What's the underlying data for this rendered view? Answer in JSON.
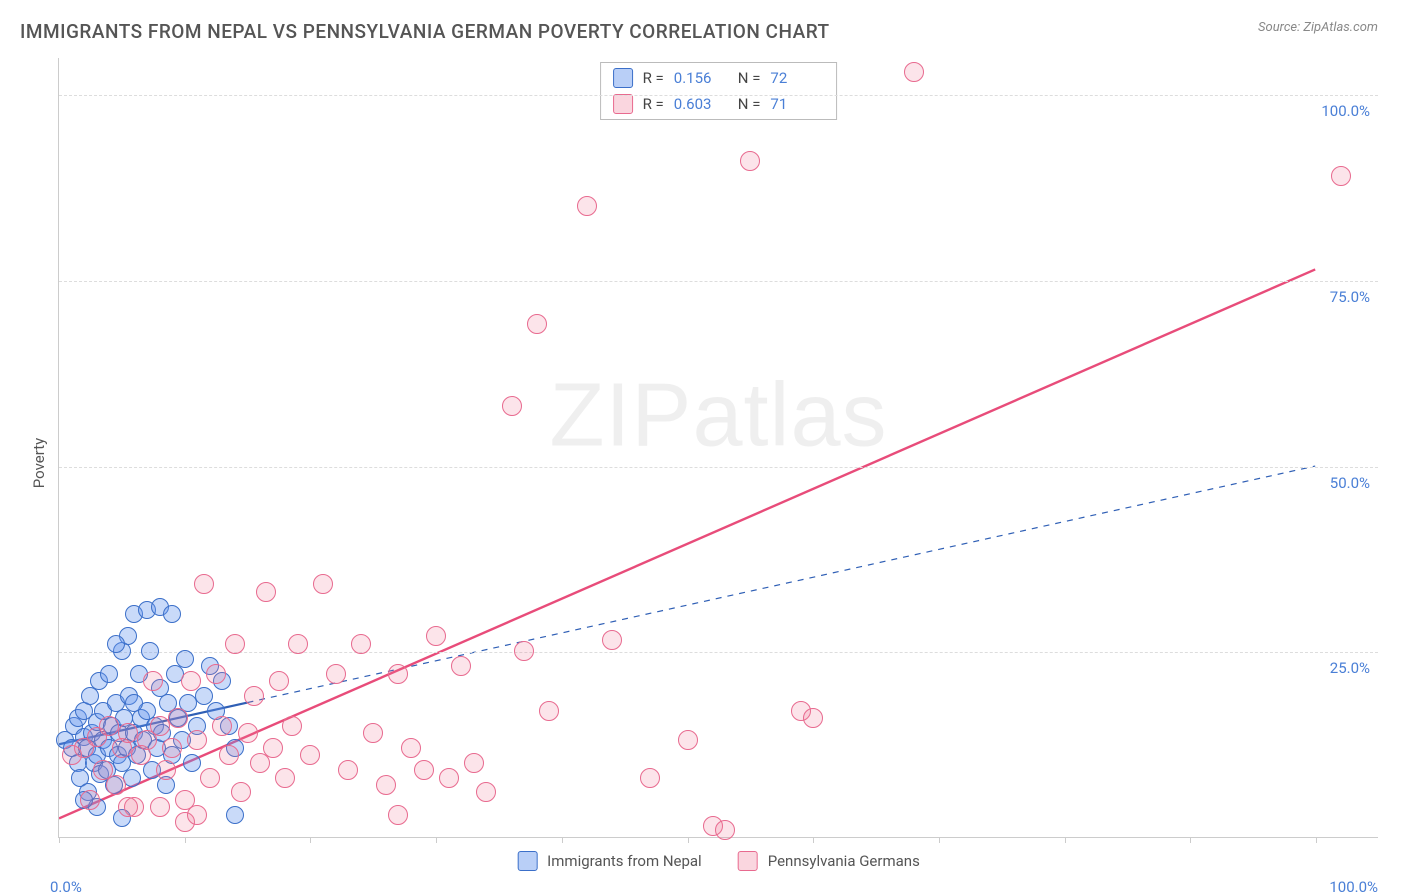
{
  "title": "IMMIGRANTS FROM NEPAL VS PENNSYLVANIA GERMAN POVERTY CORRELATION CHART",
  "source": "Source: ZipAtlas.com",
  "ylabel": "Poverty",
  "watermark_a": "ZIP",
  "watermark_b": "atlas",
  "chart": {
    "type": "scatter",
    "background_color": "#ffffff",
    "grid_color": "#dddddd",
    "axis_color": "#cccccc",
    "tick_label_color": "#4a7fd6",
    "xlim": [
      0,
      105
    ],
    "ylim": [
      0,
      105
    ],
    "yticks": [
      {
        "v": 25,
        "l": "25.0%"
      },
      {
        "v": 50,
        "l": "50.0%"
      },
      {
        "v": 75,
        "l": "75.0%"
      },
      {
        "v": 100,
        "l": "100.0%"
      }
    ],
    "xticks": [
      {
        "v": 0,
        "l": "0.0%"
      },
      {
        "v": 100,
        "l": "100.0%"
      }
    ],
    "xtick_marks": [
      0,
      10,
      20,
      30,
      40,
      50,
      60,
      70,
      80,
      90,
      100
    ],
    "series": [
      {
        "name": "Immigrants from Nepal",
        "key": "blue",
        "marker_size": 18,
        "fill": "rgba(100,149,237,0.35)",
        "stroke": "#3b6fc9",
        "R": "0.156",
        "N": "72",
        "trend": {
          "x1": 0,
          "y1": 12.5,
          "x2": 100,
          "y2": 50,
          "solid_until_x": 15,
          "line_width_solid": 2.2,
          "line_width_dash": 1.2,
          "color": "#2f5fb5",
          "dash": "6,6"
        },
        "points": [
          [
            0.5,
            13
          ],
          [
            1,
            12
          ],
          [
            1.2,
            15
          ],
          [
            1.5,
            10
          ],
          [
            1.5,
            16
          ],
          [
            1.7,
            8
          ],
          [
            2,
            13.5
          ],
          [
            2,
            17
          ],
          [
            2.2,
            12
          ],
          [
            2.3,
            6
          ],
          [
            2.5,
            19
          ],
          [
            2.6,
            14
          ],
          [
            2.8,
            10
          ],
          [
            3,
            11
          ],
          [
            3,
            15.5
          ],
          [
            3.2,
            21
          ],
          [
            3.3,
            8.5
          ],
          [
            3.5,
            13
          ],
          [
            3.5,
            17
          ],
          [
            3.8,
            9
          ],
          [
            4,
            12
          ],
          [
            4,
            22
          ],
          [
            4.2,
            15
          ],
          [
            4.4,
            7
          ],
          [
            4.5,
            18
          ],
          [
            4.7,
            11
          ],
          [
            4.8,
            14
          ],
          [
            5,
            25
          ],
          [
            5,
            10
          ],
          [
            5.2,
            16
          ],
          [
            5.4,
            12
          ],
          [
            5.5,
            27
          ],
          [
            5.6,
            19
          ],
          [
            5.8,
            8
          ],
          [
            6,
            14
          ],
          [
            6,
            30
          ],
          [
            6.2,
            11
          ],
          [
            6.4,
            22
          ],
          [
            6.5,
            16
          ],
          [
            6.7,
            13
          ],
          [
            7,
            30.5
          ],
          [
            7,
            17
          ],
          [
            7.2,
            25
          ],
          [
            7.4,
            9
          ],
          [
            7.6,
            15
          ],
          [
            7.8,
            12
          ],
          [
            8,
            31
          ],
          [
            8,
            20
          ],
          [
            8.2,
            14
          ],
          [
            8.5,
            7
          ],
          [
            8.7,
            18
          ],
          [
            9,
            30
          ],
          [
            9,
            11
          ],
          [
            9.2,
            22
          ],
          [
            9.5,
            16
          ],
          [
            9.8,
            13
          ],
          [
            10,
            24
          ],
          [
            10.3,
            18
          ],
          [
            10.6,
            10
          ],
          [
            11,
            15
          ],
          [
            11.5,
            19
          ],
          [
            12,
            23
          ],
          [
            12.5,
            17
          ],
          [
            13,
            21
          ],
          [
            13.5,
            15
          ],
          [
            14,
            12
          ],
          [
            14,
            3
          ],
          [
            3,
            4
          ],
          [
            5,
            2.5
          ],
          [
            2,
            5
          ],
          [
            4.5,
            26
          ],
          [
            6,
            18
          ]
        ]
      },
      {
        "name": "Pennsylvania Germans",
        "key": "pink",
        "marker_size": 20,
        "fill": "rgba(240,120,150,0.20)",
        "stroke": "#e86a8f",
        "R": "0.603",
        "N": "71",
        "trend": {
          "x1": 0,
          "y1": 2.5,
          "x2": 100,
          "y2": 76.5,
          "solid_until_x": 100,
          "line_width_solid": 2.4,
          "color": "#e84c7a"
        },
        "points": [
          [
            1,
            11
          ],
          [
            2,
            12
          ],
          [
            2.5,
            5
          ],
          [
            3,
            13.5
          ],
          [
            3.5,
            9
          ],
          [
            4,
            15
          ],
          [
            4.5,
            7
          ],
          [
            5,
            12
          ],
          [
            5.5,
            14
          ],
          [
            6,
            4
          ],
          [
            6.5,
            11
          ],
          [
            7,
            13
          ],
          [
            7.5,
            21
          ],
          [
            8,
            15
          ],
          [
            8.5,
            9
          ],
          [
            9,
            12
          ],
          [
            9.5,
            16
          ],
          [
            10,
            5
          ],
          [
            10.5,
            21
          ],
          [
            11,
            13
          ],
          [
            11.5,
            34
          ],
          [
            12,
            8
          ],
          [
            12.5,
            22
          ],
          [
            13,
            15
          ],
          [
            13.5,
            11
          ],
          [
            14,
            26
          ],
          [
            14.5,
            6
          ],
          [
            15,
            14
          ],
          [
            15.5,
            19
          ],
          [
            16,
            10
          ],
          [
            16.5,
            33
          ],
          [
            17,
            12
          ],
          [
            17.5,
            21
          ],
          [
            18,
            8
          ],
          [
            18.5,
            15
          ],
          [
            19,
            26
          ],
          [
            20,
            11
          ],
          [
            21,
            34
          ],
          [
            22,
            22
          ],
          [
            23,
            9
          ],
          [
            24,
            26
          ],
          [
            25,
            14
          ],
          [
            26,
            7
          ],
          [
            27,
            22
          ],
          [
            28,
            12
          ],
          [
            29,
            9
          ],
          [
            30,
            27
          ],
          [
            31,
            8
          ],
          [
            32,
            23
          ],
          [
            33,
            10
          ],
          [
            34,
            6
          ],
          [
            36,
            58
          ],
          [
            37,
            25
          ],
          [
            38,
            69
          ],
          [
            39,
            17
          ],
          [
            42,
            85
          ],
          [
            44,
            26.5
          ],
          [
            47,
            8
          ],
          [
            50,
            13
          ],
          [
            52,
            1.5
          ],
          [
            53,
            1
          ],
          [
            55,
            91
          ],
          [
            59,
            17
          ],
          [
            60,
            16
          ],
          [
            68,
            103
          ],
          [
            102,
            89
          ],
          [
            10,
            2
          ],
          [
            11,
            3
          ],
          [
            8,
            4
          ],
          [
            5.5,
            4
          ],
          [
            27,
            3
          ]
        ]
      }
    ]
  },
  "legend_stats": {
    "r_label": "R =",
    "n_label": "N ="
  }
}
